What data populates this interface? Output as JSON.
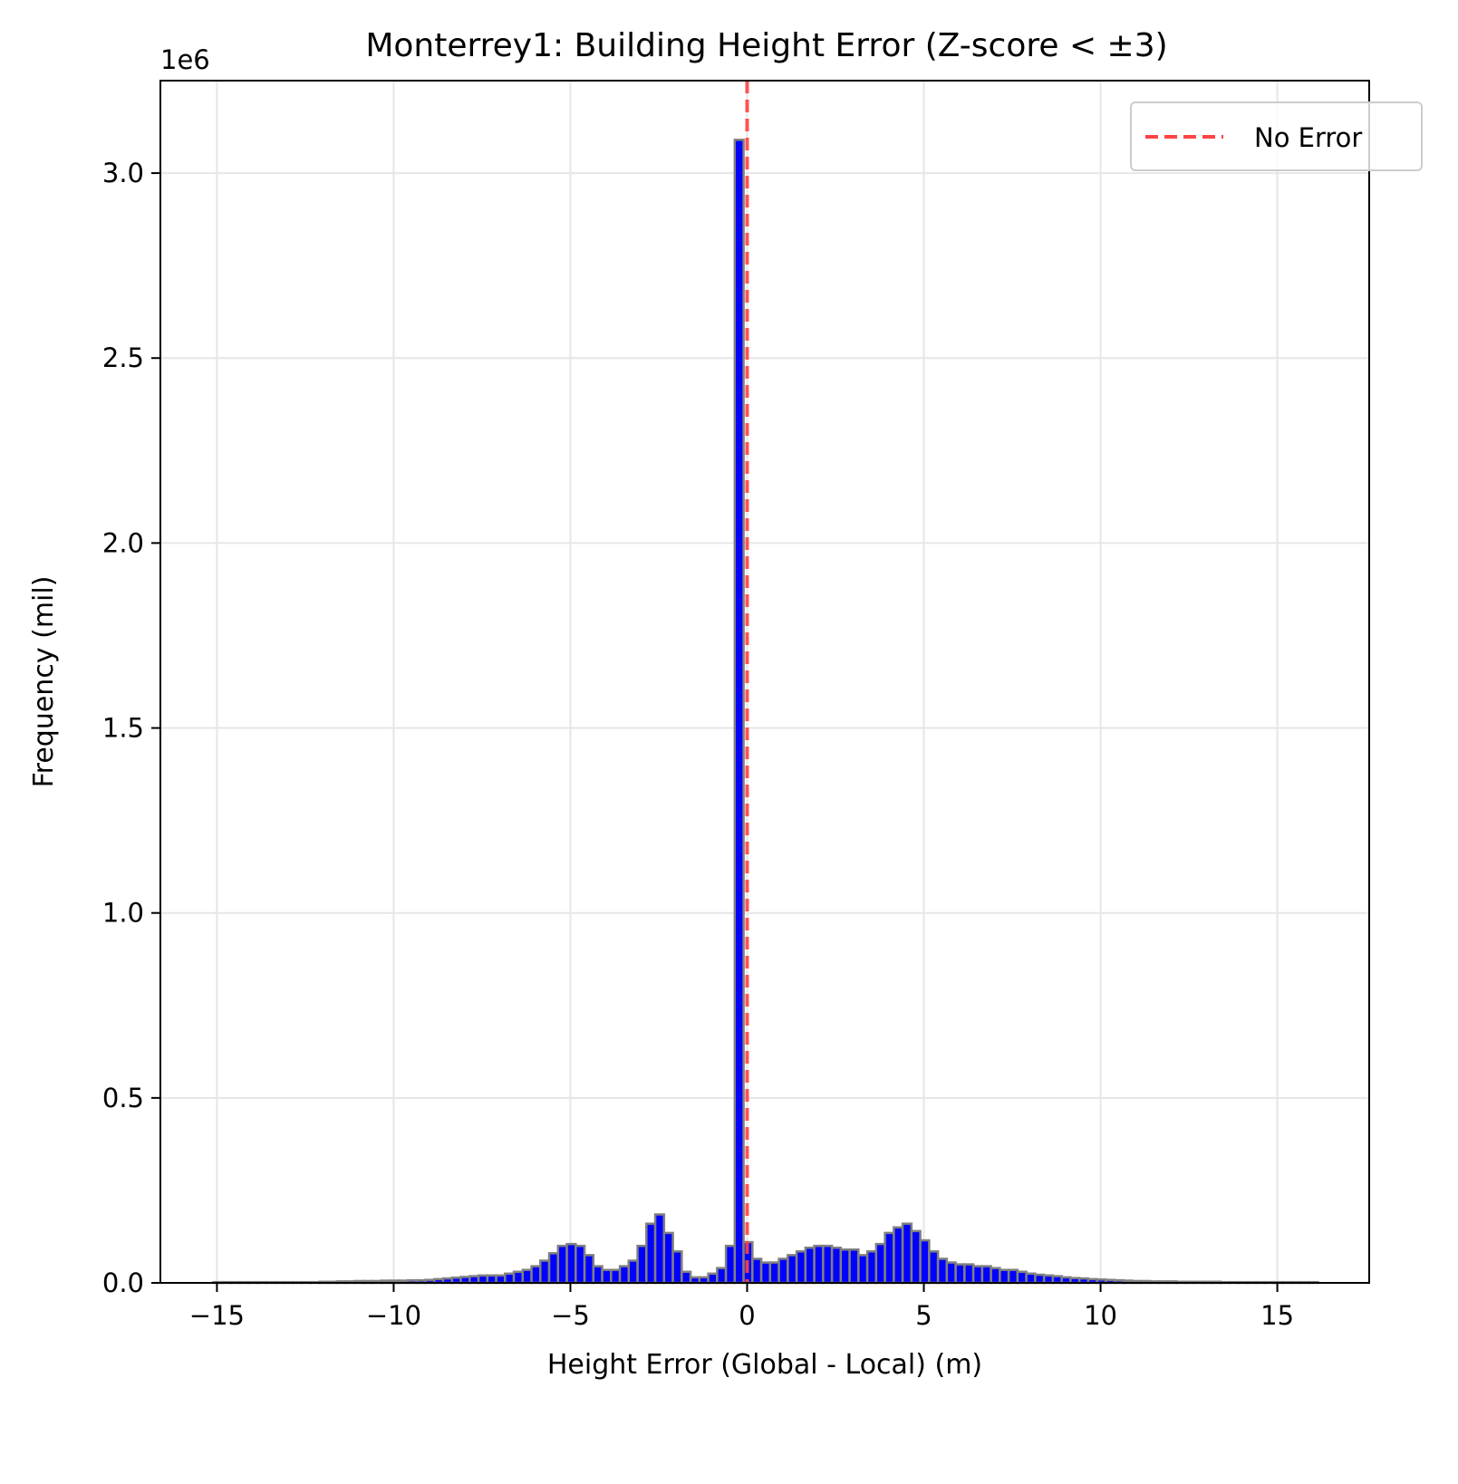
{
  "chart_data": {
    "type": "bar",
    "title": "Monterrey1: Building Height Error (Z-score < ±3)",
    "xlabel": "Height Error (Global - Local) (m)",
    "ylabel": "Frequency (mil)",
    "y_offset_label": "1e6",
    "xlim": [
      -16.6,
      17.6
    ],
    "ylim": [
      0,
      3.25
    ],
    "xticks": [
      -15,
      -10,
      -5,
      0,
      5,
      10,
      15
    ],
    "xtick_labels": [
      "−15",
      "−10",
      "−5",
      "0",
      "5",
      "10",
      "15"
    ],
    "yticks": [
      0,
      0.5,
      1.0,
      1.5,
      2.0,
      2.5,
      3.0
    ],
    "ytick_labels": [
      "0.0",
      "0.5",
      "1.0",
      "1.5",
      "2.0",
      "2.5",
      "3.0"
    ],
    "grid": true,
    "legend": {
      "position": "top-right",
      "entries": [
        "No Error"
      ]
    },
    "bin_start": -15.1,
    "bin_width": 0.25,
    "values": [
      0.002,
      0.002,
      0.002,
      0.002,
      0.002,
      0.002,
      0.002,
      0.002,
      0.002,
      0.002,
      0.002,
      0.002,
      0.003,
      0.003,
      0.004,
      0.004,
      0.005,
      0.005,
      0.005,
      0.006,
      0.006,
      0.006,
      0.007,
      0.007,
      0.008,
      0.01,
      0.012,
      0.014,
      0.016,
      0.018,
      0.02,
      0.02,
      0.02,
      0.025,
      0.03,
      0.035,
      0.045,
      0.06,
      0.08,
      0.1,
      0.105,
      0.1,
      0.075,
      0.045,
      0.035,
      0.035,
      0.045,
      0.06,
      0.1,
      0.16,
      0.185,
      0.135,
      0.085,
      0.03,
      0.015,
      0.015,
      0.025,
      0.04,
      0.1,
      3.09,
      0.11,
      0.065,
      0.055,
      0.055,
      0.065,
      0.075,
      0.085,
      0.095,
      0.1,
      0.1,
      0.095,
      0.09,
      0.09,
      0.075,
      0.085,
      0.105,
      0.135,
      0.15,
      0.16,
      0.14,
      0.115,
      0.085,
      0.065,
      0.055,
      0.05,
      0.05,
      0.045,
      0.045,
      0.04,
      0.035,
      0.035,
      0.03,
      0.025,
      0.022,
      0.02,
      0.018,
      0.015,
      0.013,
      0.012,
      0.01,
      0.009,
      0.008,
      0.007,
      0.006,
      0.005,
      0.005,
      0.004,
      0.004,
      0.004,
      0.003,
      0.003,
      0.003,
      0.003,
      0.003,
      0.002,
      0.002,
      0.002,
      0.002,
      0.002,
      0.002,
      0.002,
      0.002,
      0.002,
      0.002,
      0.002
    ],
    "reference_line": {
      "x": 0,
      "label": "No Error",
      "color": "#ff4444",
      "style": "dashed"
    },
    "bar_color": "#0000ff",
    "bar_edge_color": "#808080"
  }
}
